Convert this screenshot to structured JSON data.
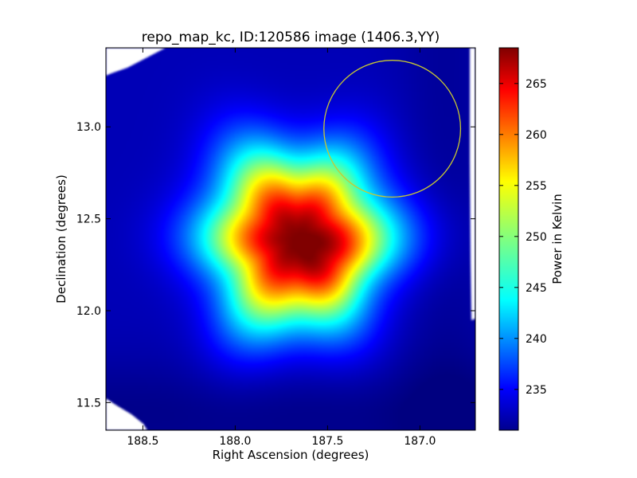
{
  "chart_data": {
    "type": "heatmap",
    "title": "repo_map_kc, ID:120586 image (1406.3,YY)",
    "xlabel": "Right Ascension (degrees)",
    "ylabel": "Declination (degrees)",
    "colorbar_label": "Power in Kelvin",
    "colormap": "jet",
    "xlim": [
      188.7,
      186.7
    ],
    "ylim": [
      11.35,
      13.43
    ],
    "clim": [
      231,
      268.5
    ],
    "x_ticks": [
      188.5,
      188.0,
      187.5,
      187.0
    ],
    "x_tick_labels": [
      "188.5",
      "188.0",
      "187.5",
      "187.0"
    ],
    "y_ticks": [
      11.5,
      12.0,
      12.5,
      13.0
    ],
    "y_tick_labels": [
      "11.5",
      "12.0",
      "12.5",
      "13.0"
    ],
    "colorbar_ticks": [
      235,
      240,
      245,
      250,
      255,
      260,
      265
    ],
    "colorbar_tick_labels": [
      "235",
      "240",
      "245",
      "250",
      "255",
      "260",
      "265"
    ],
    "peak": {
      "ra": 187.67,
      "dec": 12.39,
      "value": 268
    },
    "background_value": 233,
    "secondary_lobe": {
      "ra": 187.45,
      "dec": 12.25,
      "value": 245
    },
    "circle": {
      "ra": 187.15,
      "dec": 12.99,
      "radius_deg": 0.37,
      "color": "#c8c832"
    },
    "masked_color": "#ffffff"
  }
}
